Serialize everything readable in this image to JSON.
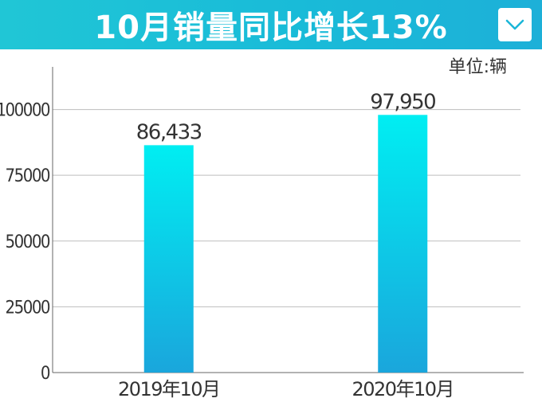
{
  "header": {
    "title": "10月销量同比增长13%",
    "dropdown_icon": "chevron-down-icon"
  },
  "unit_label": "单位:辆",
  "colors": {
    "header": "#1ebfd8",
    "bar_top": "#00eef2",
    "bar_bottom": "#1aa6dc",
    "grid": "#bdbdbd",
    "text": "#333333"
  },
  "chart_data": {
    "type": "bar",
    "categories": [
      "2019年10月",
      "2020年10月"
    ],
    "values": [
      86433,
      97950
    ],
    "data_labels": [
      "86,433",
      "97,950"
    ],
    "ylim": [
      0,
      115000
    ],
    "yticks": [
      0,
      25000,
      50000,
      75000,
      100000
    ],
    "grid": true,
    "legend": "none",
    "title": "10月销量同比增长13%"
  }
}
